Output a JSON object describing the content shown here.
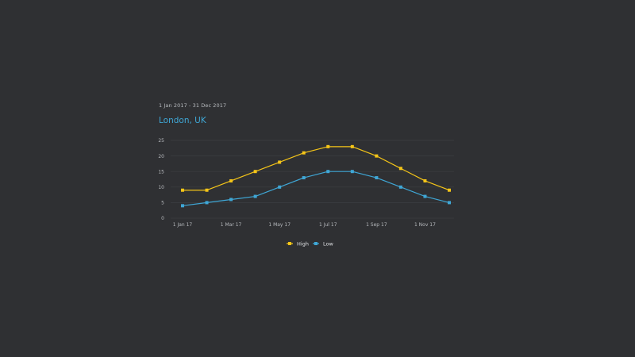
{
  "header": {
    "date_range": "1 Jan 2017 - 31 Dec 2017",
    "title": "London, UK"
  },
  "colors": {
    "background": "#2f3033",
    "grid": "#3c3e42",
    "axis_text": "#b6b9bd",
    "high": "#f5c518",
    "low": "#3fa7d6"
  },
  "chart_data": {
    "type": "line",
    "title": "London, UK",
    "subtitle": "1 Jan 2017 - 31 Dec 2017",
    "x": [
      "2017-01-01",
      "2017-02-01",
      "2017-03-01",
      "2017-04-01",
      "2017-05-01",
      "2017-06-01",
      "2017-07-01",
      "2017-08-01",
      "2017-09-01",
      "2017-10-01",
      "2017-11-01",
      "2017-12-01"
    ],
    "x_tick_labels": [
      {
        "x": "2017-01-01",
        "label": "1 Jan 17"
      },
      {
        "x": "2017-03-01",
        "label": "1 Mar 17"
      },
      {
        "x": "2017-05-01",
        "label": "1 May 17"
      },
      {
        "x": "2017-07-01",
        "label": "1 Jul 17"
      },
      {
        "x": "2017-09-01",
        "label": "1 Sep 17"
      },
      {
        "x": "2017-11-01",
        "label": "1 Nov 17"
      }
    ],
    "y_ticks": [
      0,
      5,
      10,
      15,
      20,
      25
    ],
    "ylim": [
      0,
      25
    ],
    "grid": true,
    "legend_position": "bottom-center",
    "series": [
      {
        "name": "High",
        "color": "#f5c518",
        "values": [
          9,
          9,
          12,
          15,
          18,
          21,
          23,
          23,
          20,
          16,
          12,
          9
        ]
      },
      {
        "name": "Low",
        "color": "#3fa7d6",
        "values": [
          4,
          5,
          6,
          7,
          10,
          13,
          15,
          15,
          13,
          10,
          7,
          5
        ]
      }
    ]
  }
}
